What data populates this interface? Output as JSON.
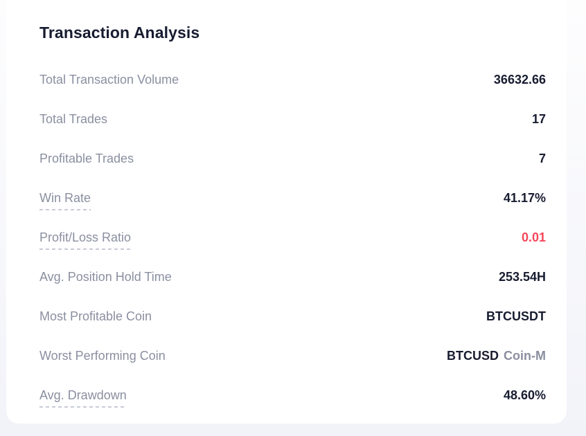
{
  "panel": {
    "title": "Transaction Analysis"
  },
  "colors": {
    "value_text": "#171c30",
    "label_text": "#8a8fa0",
    "negative_red": "#f5475b",
    "card_background": "#ffffff",
    "page_background": "#f2f3f9"
  },
  "rows": [
    {
      "label": "Total Transaction Volume",
      "value": "36632.66",
      "underline": false
    },
    {
      "label": "Total Trades",
      "value": "17",
      "underline": false
    },
    {
      "label": "Profitable Trades",
      "value": "7",
      "underline": false
    },
    {
      "label": "Win Rate",
      "value": "41.17%",
      "underline": true
    },
    {
      "label": "Profit/Loss Ratio",
      "value": "0.01",
      "underline": true,
      "value_color": "red"
    },
    {
      "label": "Avg. Position Hold Time",
      "value": "253.54H",
      "underline": false
    },
    {
      "label": "Most Profitable Coin",
      "value": "BTCUSDT",
      "underline": false
    },
    {
      "label": "Worst Performing Coin",
      "value": "BTCUSD",
      "value_suffix": "Coin-M",
      "underline": false
    },
    {
      "label": "Avg. Drawdown",
      "value": "48.60%",
      "underline": true
    }
  ]
}
